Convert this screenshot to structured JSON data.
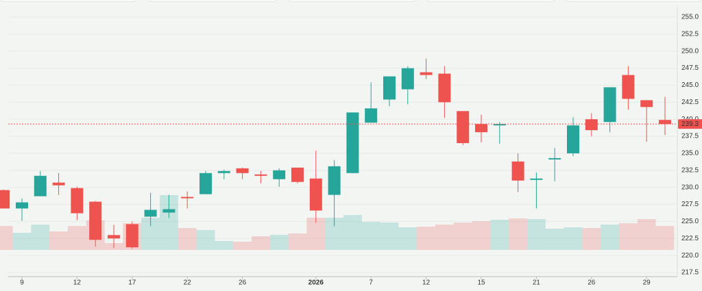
{
  "chart_data": {
    "type": "candlestick",
    "categories": [
      null,
      "9",
      null,
      null,
      "12",
      null,
      null,
      "17",
      null,
      null,
      "22",
      null,
      null,
      "26",
      null,
      null,
      null,
      "2026",
      null,
      null,
      "7",
      null,
      null,
      "12",
      null,
      null,
      "15",
      null,
      null,
      "21",
      null,
      null,
      "26",
      null,
      null,
      "29",
      null
    ],
    "open": [
      229.6,
      226.9,
      228.7,
      230.7,
      229.9,
      227.9,
      223.0,
      224.6,
      225.7,
      226.3,
      228.6,
      229.0,
      232.1,
      232.8,
      231.9,
      231.2,
      232.9,
      231.3,
      228.9,
      232.1,
      239.5,
      242.9,
      244.4,
      246.9,
      246.7,
      241.2,
      239.3,
      239.1,
      233.8,
      231.1,
      234.1,
      235.0,
      240.0,
      239.6,
      246.5,
      242.8,
      239.9
    ],
    "high": [
      229.7,
      228.4,
      232.4,
      232.1,
      230.1,
      228.0,
      224.5,
      225.0,
      229.2,
      228.9,
      229.4,
      232.4,
      232.6,
      232.9,
      232.4,
      232.8,
      232.9,
      235.4,
      234.0,
      241.0,
      245.4,
      246.3,
      247.8,
      248.9,
      247.8,
      241.2,
      240.7,
      239.6,
      235.0,
      232.2,
      235.8,
      240.3,
      240.9,
      244.7,
      247.8,
      242.8,
      243.3
    ],
    "low": [
      226.9,
      225.1,
      228.7,
      228.9,
      225.2,
      221.3,
      221.1,
      221.0,
      224.3,
      225.5,
      226.9,
      229.0,
      231.2,
      231.2,
      230.6,
      230.1,
      230.6,
      224.8,
      224.3,
      232.1,
      239.5,
      241.9,
      242.2,
      245.9,
      240.2,
      236.2,
      236.6,
      236.4,
      229.3,
      226.9,
      230.9,
      234.6,
      237.5,
      238.1,
      241.4,
      236.7,
      237.7
    ],
    "close": [
      226.9,
      227.8,
      231.7,
      230.3,
      226.2,
      222.3,
      222.5,
      221.2,
      226.7,
      226.8,
      228.5,
      232.1,
      232.4,
      232.1,
      231.8,
      232.5,
      230.8,
      226.6,
      233.1,
      241.0,
      241.6,
      246.3,
      247.5,
      246.5,
      242.5,
      236.5,
      238.1,
      239.3,
      231.0,
      231.3,
      234.3,
      239.1,
      238.4,
      244.7,
      243.0,
      241.8,
      239.3
    ],
    "volume": [
      35,
      25,
      37,
      27,
      35,
      43,
      10,
      39,
      47,
      80,
      32,
      29,
      13,
      12,
      20,
      22,
      24,
      47,
      47,
      51,
      41,
      40,
      33,
      34,
      37,
      40,
      42,
      44,
      46,
      45,
      31,
      33,
      32,
      37,
      39,
      45,
      35
    ],
    "up_color": "#26a69a",
    "down_color": "#ef5350",
    "ylim": [
      217.5,
      255.0
    ],
    "yticks": [
      {
        "value": 217.5,
        "label": "217.5"
      },
      {
        "value": 220,
        "label": "220.0"
      },
      {
        "value": 222.5,
        "label": "222.5"
      },
      {
        "value": 225,
        "label": "225.0"
      },
      {
        "value": 227.5,
        "label": "227.5"
      },
      {
        "value": 230,
        "label": "230.0"
      },
      {
        "value": 232.5,
        "label": "232.5"
      },
      {
        "value": 235,
        "label": "235.0"
      },
      {
        "value": 237.5,
        "label": "237.5"
      },
      {
        "value": 240,
        "label": "240.0"
      },
      {
        "value": 242.5,
        "label": "242.5"
      },
      {
        "value": 245,
        "label": "245.0"
      },
      {
        "value": 247.5,
        "label": "247.5"
      },
      {
        "value": 250,
        "label": "250.0"
      },
      {
        "value": 252.5,
        "label": "252.5"
      },
      {
        "value": 255,
        "label": "255.0"
      }
    ],
    "last_price": 239.3,
    "grid": true
  }
}
